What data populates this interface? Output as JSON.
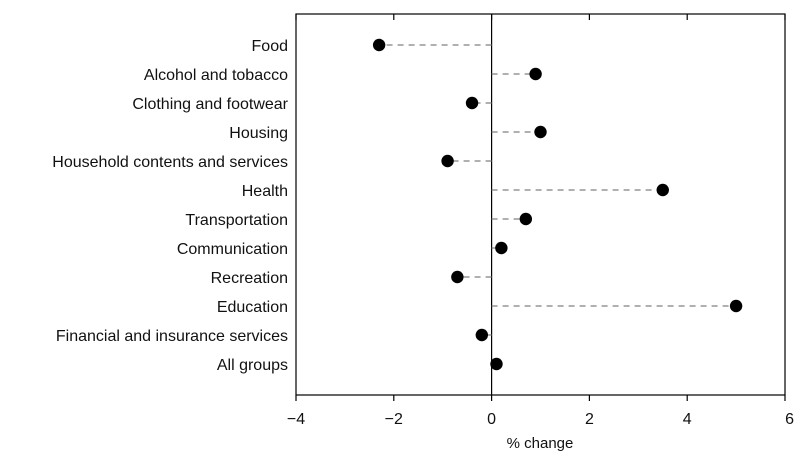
{
  "chart_data": {
    "type": "scatter",
    "style": "dot-plot",
    "xlabel": "% change",
    "xlim": [
      -4,
      6
    ],
    "xticks": [
      -4,
      -2,
      0,
      2,
      4,
      6
    ],
    "xtick_labels": [
      "−4",
      "−2",
      "0",
      "2",
      "4",
      "6"
    ],
    "categories": [
      "Food",
      "Alcohol and tobacco",
      "Clothing and footwear",
      "Housing",
      "Household contents and services",
      "Health",
      "Transportation",
      "Communication",
      "Recreation",
      "Education",
      "Financial and insurance services",
      "All groups"
    ],
    "values": [
      -2.3,
      0.9,
      -0.4,
      1.0,
      -0.9,
      3.5,
      0.7,
      0.2,
      -0.7,
      5.0,
      -0.2,
      0.1
    ],
    "reference_line": 0,
    "grid": false,
    "colors": {
      "marker": "#000000",
      "connector": "#808080",
      "axis": "#000000"
    }
  }
}
